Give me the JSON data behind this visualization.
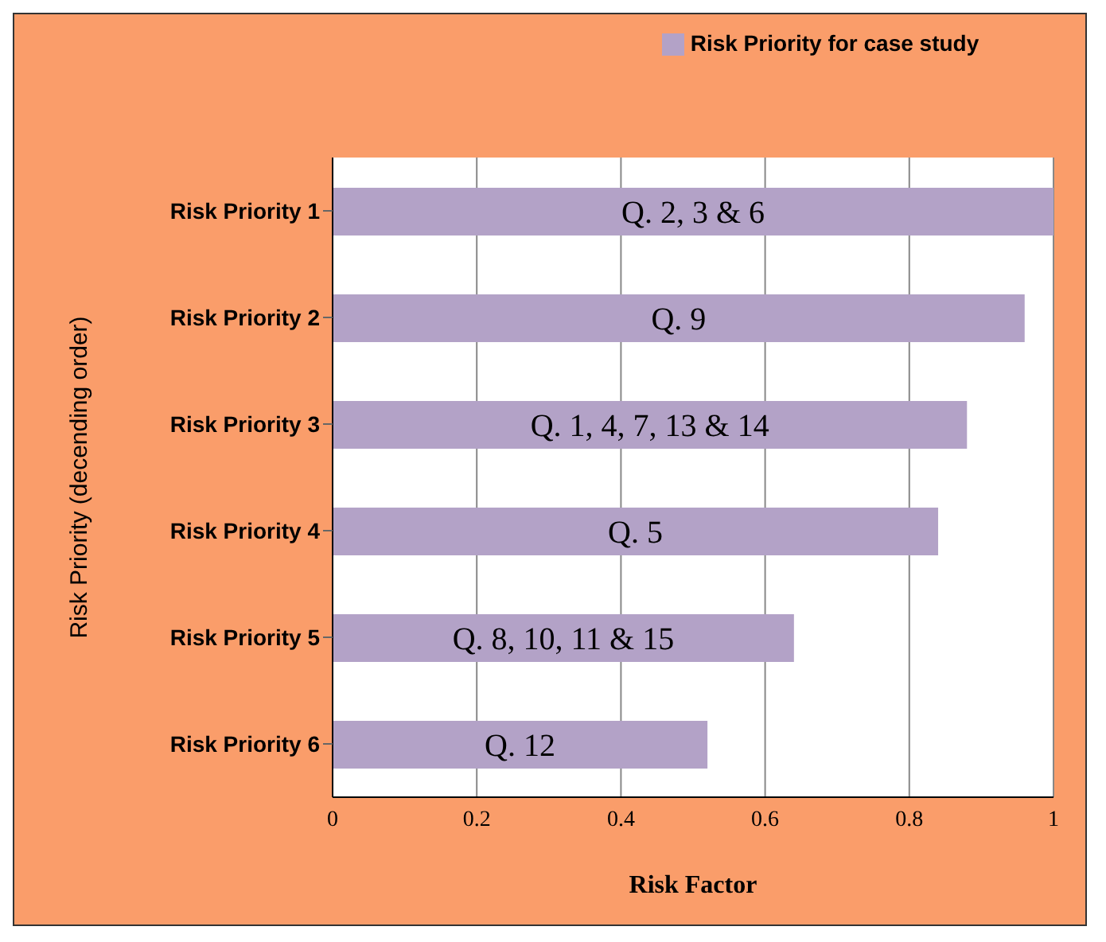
{
  "chart_data": {
    "type": "bar",
    "orientation": "horizontal",
    "categories": [
      "Risk Priority 1",
      "Risk Priority 2",
      "Risk Priority 3",
      "Risk Priority 4",
      "Risk Priority 5",
      "Risk Priority 6"
    ],
    "series": [
      {
        "name": "Risk Priority for case study",
        "color": "#b3a2c7",
        "values": [
          1.0,
          0.96,
          0.88,
          0.84,
          0.64,
          0.52
        ]
      }
    ],
    "xlabel": "Risk Factor",
    "ylabel": "Risk Priority (decending order)",
    "xlim": [
      0,
      1
    ],
    "xticks": [
      0,
      {
        "value": 0.2,
        "label": "0.2"
      },
      {
        "value": 0.4,
        "label": "0.4"
      },
      {
        "value": 0.6,
        "label": "0.6"
      },
      {
        "value": 0.8,
        "label": "0.8"
      },
      1
    ],
    "grid": "x",
    "legend": "top",
    "value_labels": [
      "Q. 2, 3 & 6",
      "Q. 9",
      "Q. 1, 4, 7, 13 & 14",
      "Q. 5",
      "Q. 8, 10, 11 & 15",
      "Q. 12"
    ]
  }
}
